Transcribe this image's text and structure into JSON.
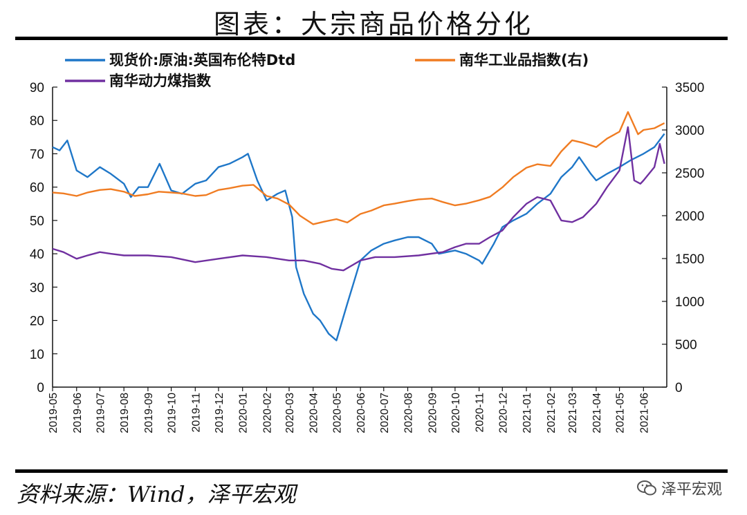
{
  "page": {
    "title": "图表：大宗商品价格分化",
    "source": "资料来源：Wind，泽平宏观",
    "watermark": "泽平宏观"
  },
  "chart_data": {
    "type": "line",
    "legend_placement": "top",
    "grid": false,
    "y_left": {
      "ticks": [
        "0",
        "10",
        "20",
        "30",
        "40",
        "50",
        "60",
        "70",
        "80",
        "90"
      ],
      "range": [
        0,
        90
      ]
    },
    "y_right": {
      "ticks": [
        "0",
        "500",
        "1000",
        "1500",
        "2000",
        "2500",
        "3000",
        "3500"
      ],
      "range": [
        0,
        3500
      ]
    },
    "x_ticks": [
      "2019-05",
      "2019-06",
      "2019-07",
      "2019-08",
      "2019-09",
      "2019-10",
      "2019-11",
      "2019-12",
      "2020-01",
      "2020-02",
      "2020-03",
      "2020-04",
      "2020-05",
      "2020-06",
      "2020-07",
      "2020-08",
      "2020-09",
      "2020-10",
      "2020-11",
      "2020-12",
      "2021-01",
      "2021-02",
      "2021-03",
      "2021-04",
      "2021-05",
      "2021-06"
    ],
    "series": [
      {
        "name": "现货价:原油:英国布伦特Dtd",
        "axis": "left",
        "color": "#1f77c8",
        "x": [
          "2019-05-01",
          "2019-05-10",
          "2019-05-20",
          "2019-06-01",
          "2019-06-15",
          "2019-07-01",
          "2019-07-15",
          "2019-08-01",
          "2019-08-10",
          "2019-08-20",
          "2019-09-01",
          "2019-09-16",
          "2019-10-01",
          "2019-10-15",
          "2019-11-01",
          "2019-11-15",
          "2019-12-01",
          "2019-12-15",
          "2020-01-01",
          "2020-01-08",
          "2020-01-20",
          "2020-02-01",
          "2020-02-15",
          "2020-02-25",
          "2020-03-05",
          "2020-03-10",
          "2020-03-20",
          "2020-04-01",
          "2020-04-10",
          "2020-04-21",
          "2020-05-01",
          "2020-05-15",
          "2020-06-01",
          "2020-06-15",
          "2020-07-01",
          "2020-07-15",
          "2020-08-01",
          "2020-08-15",
          "2020-09-01",
          "2020-09-10",
          "2020-10-01",
          "2020-10-15",
          "2020-11-01",
          "2020-11-05",
          "2020-11-20",
          "2020-12-01",
          "2020-12-15",
          "2021-01-01",
          "2021-01-15",
          "2021-02-01",
          "2021-02-15",
          "2021-03-01",
          "2021-03-10",
          "2021-03-25",
          "2021-04-01",
          "2021-04-15",
          "2021-05-01",
          "2021-05-15",
          "2021-06-01",
          "2021-06-15",
          "2021-06-28"
        ],
        "values": [
          72,
          71,
          74,
          65,
          63,
          66,
          64,
          61,
          57,
          60,
          60,
          67,
          59,
          58,
          61,
          62,
          66,
          67,
          69,
          70,
          62,
          56,
          58,
          59,
          51,
          36,
          28,
          22,
          20,
          16,
          14,
          25,
          38,
          41,
          43,
          44,
          45,
          45,
          43,
          40,
          41,
          40,
          38,
          37,
          43,
          48,
          50,
          52,
          55,
          58,
          63,
          66,
          69,
          64,
          62,
          64,
          66,
          68,
          70,
          72,
          76
        ]
      },
      {
        "name": "南华工业品指数(右)",
        "axis": "right",
        "color": "#f07c22",
        "x": [
          "2019-05-01",
          "2019-05-15",
          "2019-06-01",
          "2019-06-15",
          "2019-07-01",
          "2019-07-15",
          "2019-08-01",
          "2019-08-15",
          "2019-09-01",
          "2019-09-15",
          "2019-10-01",
          "2019-10-15",
          "2019-11-01",
          "2019-11-15",
          "2019-12-01",
          "2019-12-15",
          "2020-01-01",
          "2020-01-15",
          "2020-02-01",
          "2020-02-15",
          "2020-03-01",
          "2020-03-15",
          "2020-04-01",
          "2020-04-15",
          "2020-05-01",
          "2020-05-15",
          "2020-06-01",
          "2020-06-15",
          "2020-07-01",
          "2020-07-15",
          "2020-08-01",
          "2020-08-15",
          "2020-09-01",
          "2020-09-15",
          "2020-10-01",
          "2020-10-15",
          "2020-11-01",
          "2020-11-15",
          "2020-12-01",
          "2020-12-15",
          "2021-01-01",
          "2021-01-15",
          "2021-02-01",
          "2021-02-15",
          "2021-03-01",
          "2021-03-15",
          "2021-04-01",
          "2021-04-15",
          "2021-05-01",
          "2021-05-12",
          "2021-05-25",
          "2021-06-01",
          "2021-06-15",
          "2021-06-28"
        ],
        "values": [
          2270,
          2260,
          2230,
          2270,
          2300,
          2310,
          2280,
          2230,
          2250,
          2280,
          2270,
          2260,
          2230,
          2240,
          2300,
          2320,
          2350,
          2360,
          2230,
          2200,
          2130,
          2000,
          1900,
          1930,
          1960,
          1920,
          2020,
          2060,
          2120,
          2140,
          2170,
          2190,
          2200,
          2160,
          2120,
          2140,
          2180,
          2220,
          2330,
          2450,
          2560,
          2600,
          2580,
          2750,
          2880,
          2850,
          2800,
          2900,
          2980,
          3210,
          2950,
          3000,
          3020,
          3080
        ]
      },
      {
        "name": "南华动力煤指数",
        "axis": "left",
        "color": "#7030a0",
        "x": [
          "2019-05-01",
          "2019-05-15",
          "2019-06-01",
          "2019-06-15",
          "2019-07-01",
          "2019-07-15",
          "2019-08-01",
          "2019-09-01",
          "2019-10-01",
          "2019-11-01",
          "2019-12-01",
          "2020-01-01",
          "2020-02-01",
          "2020-03-01",
          "2020-03-20",
          "2020-04-10",
          "2020-04-25",
          "2020-05-10",
          "2020-06-01",
          "2020-06-20",
          "2020-07-15",
          "2020-08-15",
          "2020-09-15",
          "2020-10-01",
          "2020-10-15",
          "2020-11-01",
          "2020-11-15",
          "2020-12-01",
          "2020-12-15",
          "2021-01-01",
          "2021-01-15",
          "2021-02-01",
          "2021-02-15",
          "2021-03-01",
          "2021-03-15",
          "2021-04-01",
          "2021-04-15",
          "2021-05-01",
          "2021-05-12",
          "2021-05-20",
          "2021-05-28",
          "2021-06-01",
          "2021-06-15",
          "2021-06-22",
          "2021-06-28"
        ],
        "values": [
          41.5,
          40.5,
          38.5,
          39.5,
          40.5,
          40,
          39.5,
          39.5,
          39,
          37.5,
          38.5,
          39.5,
          39,
          38,
          38,
          37,
          35.5,
          35,
          38,
          39,
          39,
          39.5,
          40.5,
          42,
          43,
          43,
          45,
          47,
          51,
          55,
          57,
          56,
          50,
          49.5,
          51,
          55,
          60,
          65,
          78,
          62,
          61,
          62,
          66,
          73,
          67
        ]
      }
    ]
  }
}
